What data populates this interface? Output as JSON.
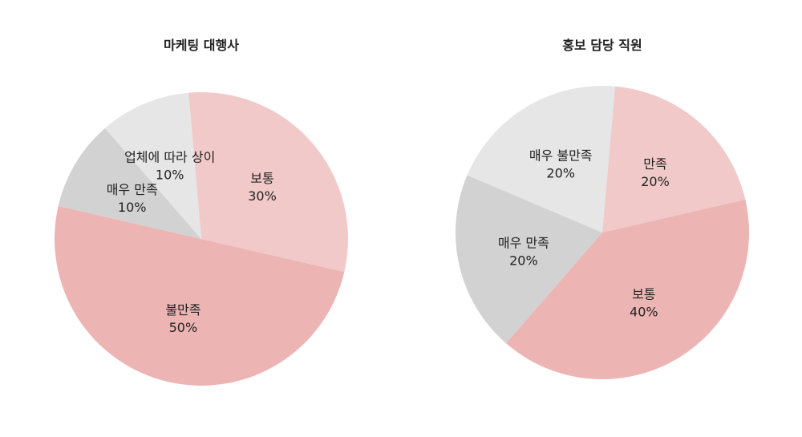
{
  "chart_data": [
    {
      "type": "pie",
      "title": "마케팅 대행사",
      "slices": [
        {
          "label": "보통",
          "pct_label": "30%",
          "value": 30,
          "color": "#f1c9c9"
        },
        {
          "label": "불만족",
          "pct_label": "50%",
          "value": 50,
          "color": "#ecb5b4"
        },
        {
          "label": "매우 만족",
          "pct_label": "10%",
          "value": 10,
          "color": "#d2d2d2"
        },
        {
          "label": "업체에 따라 상이",
          "pct_label": "10%",
          "value": 10,
          "color": "#e6e6e6"
        }
      ]
    },
    {
      "type": "pie",
      "title": "홍보 담당 직원",
      "slices": [
        {
          "label": "만족",
          "pct_label": "20%",
          "value": 20,
          "color": "#f1c9c9"
        },
        {
          "label": "보통",
          "pct_label": "40%",
          "value": 40,
          "color": "#ecb5b4"
        },
        {
          "label": "매우 만족",
          "pct_label": "20%",
          "value": 20,
          "color": "#d2d2d2"
        },
        {
          "label": "매우 불만족",
          "pct_label": "20%",
          "value": 20,
          "color": "#e6e6e6"
        }
      ]
    }
  ]
}
